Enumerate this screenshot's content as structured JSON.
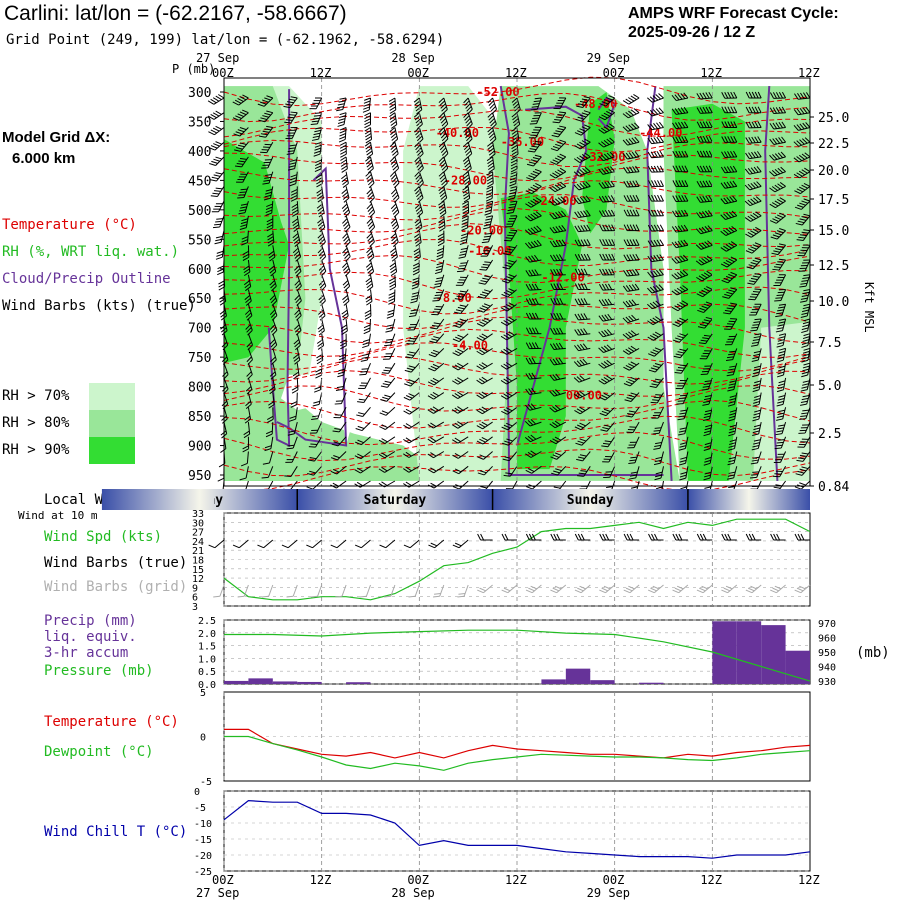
{
  "header": {
    "title": "Carlini:  lat/lon = (-62.2167, -58.6667)",
    "grid_point": "Grid Point (249, 199) lat/lon = (-62.1962, -58.6294)",
    "cycle_line1": "AMPS WRF Forecast Cycle:",
    "cycle_line2": "2025-09-26 / 12  Z"
  },
  "colors": {
    "temperature": "#dd0000",
    "dewpoint": "#22bb22",
    "cloud_outline": "#663399",
    "rh70": "#ccf5cc",
    "rh80": "#99e699",
    "rh90": "#33dd33",
    "wind_chill": "#0000aa",
    "precip": "#663399",
    "pressure": "#22bb22"
  },
  "legend": {
    "grid_dx_label": "Model Grid ΔX:",
    "grid_dx_value": "6.000 km",
    "temperature": "Temperature (°C)",
    "rh": "RH (%, WRT liq. wat.)",
    "cloud": "Cloud/Precip Outline",
    "wind_barbs": "Wind Barbs (kts) (true)",
    "rh70": "RH > 70%",
    "rh80": "RH > 80%",
    "rh90": "RH > 90%"
  },
  "time_axis": {
    "labels": [
      "00Z",
      "12Z",
      "00Z",
      "12Z",
      "00Z",
      "12Z"
    ],
    "dates": [
      "27 Sep",
      "28 Sep",
      "29 Sep"
    ]
  },
  "weekday": {
    "label": "Local Weekday",
    "days": [
      "Friday",
      "Saturday",
      "Sunday"
    ],
    "wind_at": "Wind at 10 m"
  },
  "panel_labels": {
    "wind_spd": "Wind Spd (kts)",
    "wind_barbs_true": "Wind Barbs (true)",
    "wind_barbs_grid": "Wind Barbs (grid)",
    "precip1": "Precip (mm)",
    "precip2": "liq. equiv.",
    "precip3": "3-hr accum",
    "pressure": "Pressure (mb)",
    "pressure_unit": "(mb)",
    "temperature": "Temperature (°C)",
    "dewpoint": "Dewpoint (°C)",
    "wind_chill": "Wind Chill T (°C)",
    "p_axis": "P (mb)",
    "kft": "Kft MSL"
  },
  "chart_data": [
    {
      "type": "heatmap",
      "title": "Vertical cross-section",
      "x_hours": [
        0,
        72
      ],
      "y_pressure_ticks": [
        300,
        350,
        400,
        450,
        500,
        550,
        600,
        650,
        700,
        750,
        800,
        850,
        900,
        950
      ],
      "y_right_ticks": [
        "25.0",
        "22.5",
        "20.0",
        "17.5",
        "15.0",
        "12.5",
        "10.0",
        "7.5",
        "5.0",
        "2.5",
        "0.84"
      ],
      "temperature_contour_labels": [
        "-52.00",
        "-48.00",
        "-44.00",
        "-40.00",
        "-36.00",
        "-32.00",
        "-28.00",
        "-24.00",
        "-20.00",
        "-16.00",
        "-12.00",
        "-8.00",
        "-4.00",
        "00.00"
      ]
    },
    {
      "type": "line",
      "title": "Wind Spd (kts)",
      "yticks": [
        3,
        6,
        9,
        12,
        15,
        18,
        21,
        24,
        27,
        30,
        33
      ],
      "ylim": [
        3,
        33
      ],
      "x_hours": [
        0,
        3,
        6,
        9,
        12,
        15,
        18,
        21,
        24,
        27,
        30,
        33,
        36,
        39,
        42,
        45,
        48,
        51,
        54,
        57,
        60,
        63,
        66,
        69,
        72
      ],
      "values": [
        12,
        6,
        5,
        5,
        6,
        6,
        5,
        7,
        11,
        16,
        17,
        20,
        22,
        27,
        28,
        28,
        29,
        30,
        28,
        30,
        29,
        31,
        31,
        31,
        27
      ]
    },
    {
      "type": "bar",
      "title": "Precip (mm) / Pressure (mb)",
      "yticks_left": [
        0.0,
        0.5,
        1.0,
        1.5,
        2.0,
        2.5
      ],
      "ylim_left": [
        0,
        2.5
      ],
      "yticks_right": [
        930,
        940,
        950,
        960,
        970
      ],
      "ylim_right": [
        928,
        972
      ],
      "precip_x_hours": [
        0,
        3,
        6,
        9,
        12,
        15,
        18,
        21,
        24,
        27,
        30,
        33,
        36,
        39,
        42,
        45,
        48,
        51,
        54,
        57,
        60,
        63,
        66,
        69
      ],
      "precip_values": [
        0.12,
        0.22,
        0.1,
        0.08,
        0,
        0.07,
        0,
        0,
        0,
        0,
        0,
        0,
        0,
        0.18,
        0.6,
        0.15,
        0,
        0.05,
        0,
        0,
        2.45,
        2.45,
        2.3,
        1.3
      ],
      "pressure_x_hours": [
        0,
        6,
        12,
        18,
        24,
        30,
        36,
        42,
        48,
        54,
        60,
        66,
        72
      ],
      "pressure_values": [
        962,
        962,
        961,
        963,
        964,
        965,
        965,
        963,
        962,
        957,
        950,
        940,
        930
      ]
    },
    {
      "type": "line",
      "title": "Temperature / Dewpoint (°C)",
      "yticks": [
        -5,
        0,
        5
      ],
      "ylim": [
        -5,
        5
      ],
      "series": [
        {
          "name": "Temperature (°C)",
          "x_hours": [
            0,
            3,
            6,
            9,
            12,
            15,
            18,
            21,
            24,
            27,
            30,
            33,
            36,
            39,
            42,
            45,
            48,
            51,
            54,
            57,
            60,
            63,
            66,
            69,
            72
          ],
          "values": [
            0.8,
            0.8,
            -0.8,
            -1.4,
            -2.0,
            -2.2,
            -1.8,
            -2.4,
            -1.8,
            -2.4,
            -1.6,
            -1.0,
            -1.4,
            -1.6,
            -1.8,
            -2.0,
            -2.0,
            -2.2,
            -2.4,
            -2.0,
            -2.2,
            -1.8,
            -1.6,
            -1.2,
            -1.0
          ]
        },
        {
          "name": "Dewpoint (°C)",
          "x_hours": [
            0,
            3,
            6,
            9,
            12,
            15,
            18,
            21,
            24,
            27,
            30,
            33,
            36,
            39,
            42,
            45,
            48,
            51,
            54,
            57,
            60,
            63,
            66,
            69,
            72
          ],
          "values": [
            0.0,
            0.0,
            -0.8,
            -1.5,
            -2.3,
            -3.2,
            -3.6,
            -3.0,
            -3.3,
            -3.8,
            -3.0,
            -2.6,
            -2.3,
            -2.0,
            -2.1,
            -2.2,
            -2.3,
            -2.3,
            -2.4,
            -2.6,
            -2.7,
            -2.4,
            -2.0,
            -1.8,
            -1.6
          ]
        }
      ]
    },
    {
      "type": "line",
      "title": "Wind Chill T (°C)",
      "yticks": [
        -25,
        -20,
        -15,
        -10,
        -5,
        0
      ],
      "ylim": [
        -25,
        0
      ],
      "x_hours": [
        0,
        3,
        6,
        9,
        12,
        15,
        18,
        21,
        24,
        27,
        30,
        33,
        36,
        39,
        42,
        45,
        48,
        51,
        54,
        57,
        60,
        63,
        66,
        69,
        72
      ],
      "values": [
        -9,
        -3,
        -3.5,
        -3.5,
        -7,
        -7,
        -7.5,
        -10,
        -17,
        -15.5,
        -17,
        -17,
        -17,
        -18,
        -19,
        -19.5,
        -20,
        -20.5,
        -20.5,
        -20.5,
        -21,
        -20,
        -20,
        -20,
        -19
      ]
    }
  ]
}
